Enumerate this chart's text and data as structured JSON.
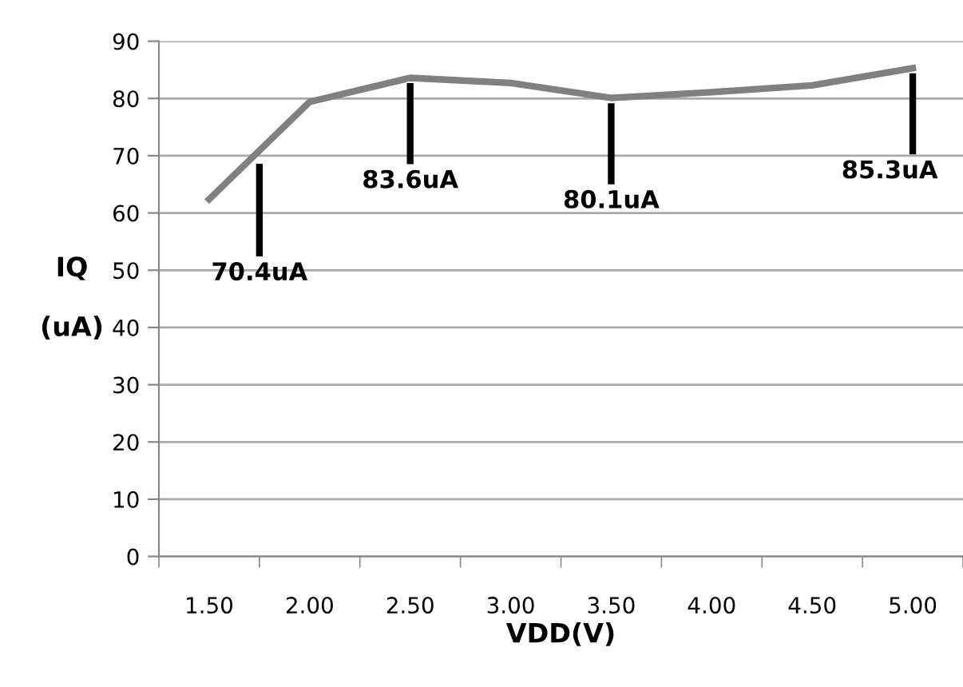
{
  "chart_data": {
    "type": "line",
    "xlabel": "VDD(V)",
    "ylabel": "IQ\n\n(uA)",
    "categories": [
      "1.50",
      "2.00",
      "2.50",
      "3.00",
      "3.50",
      "4.00",
      "4.50",
      "5.00"
    ],
    "series": [
      {
        "color": "#808080",
        "values": [
          62.4,
          79.4,
          83.6,
          82.7,
          80.1,
          81.1,
          82.3,
          85.3
        ]
      }
    ],
    "ylim": [
      0,
      90
    ],
    "yticks": [
      0,
      10,
      20,
      30,
      40,
      50,
      60,
      70,
      80,
      90
    ],
    "grid": "y",
    "legend": false,
    "marker": "none",
    "line_style": "solid",
    "annotations": [
      "70.4uA",
      {
        "text": "83.6uA",
        "x": "2.50",
        "y": 83.6
      },
      {
        "text": "80.1uA",
        "x": "3.50",
        "y": 80.1
      },
      {
        "text": "85.3uA",
        "x": "5.00",
        "y": 85.3
      }
    ]
  }
}
